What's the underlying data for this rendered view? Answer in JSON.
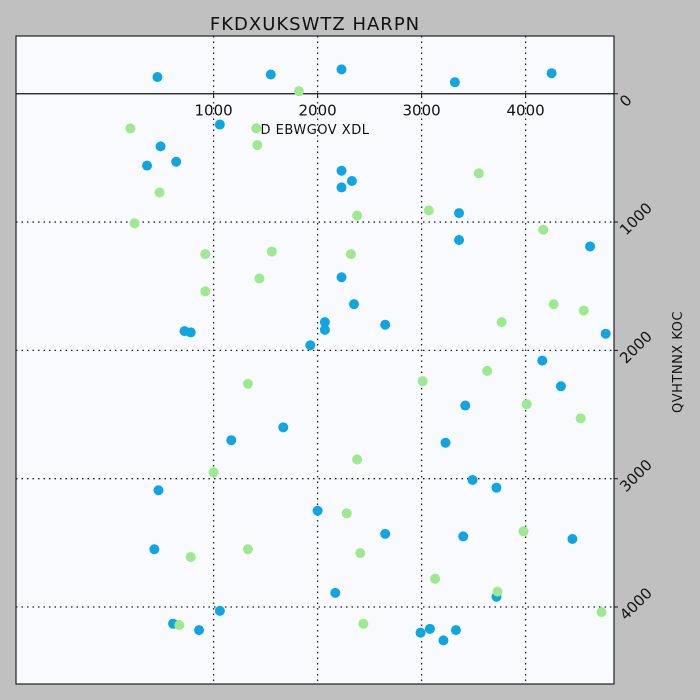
{
  "chart_data": {
    "type": "scatter",
    "title": "FKDXUKSWTZ HARPN",
    "xlabel": "D EBWGOV XDL",
    "ylabel": "QVHTNNX KOC",
    "xlim": [
      -900,
      4850
    ],
    "ylim": [
      -450,
      4600
    ],
    "x_ticks": [
      1000,
      2000,
      3000,
      4000
    ],
    "y_ticks": [
      0,
      1000,
      2000,
      3000,
      4000
    ],
    "x_axis_position": "top",
    "y_axis_position": "right",
    "y_inverted": true,
    "grid": true,
    "colors": {
      "blue": "#0ea5e0",
      "green": "#9ee890",
      "background": "#f8fafe"
    },
    "series": [
      {
        "color": "#0ea5e0",
        "points": [
          [
            460,
            -130
          ],
          [
            1550,
            -150
          ],
          [
            2230,
            -190
          ],
          [
            4250,
            -160
          ],
          [
            3320,
            -90
          ],
          [
            1060,
            240
          ],
          [
            490,
            410
          ],
          [
            360,
            560
          ],
          [
            640,
            530
          ],
          [
            2230,
            600
          ],
          [
            2330,
            680
          ],
          [
            2230,
            730
          ],
          [
            3360,
            930
          ],
          [
            3360,
            1140
          ],
          [
            4620,
            1190
          ],
          [
            2230,
            1430
          ],
          [
            2350,
            1640
          ],
          [
            2650,
            1800
          ],
          [
            2070,
            1780
          ],
          [
            2070,
            1840
          ],
          [
            1930,
            1960
          ],
          [
            720,
            1850
          ],
          [
            780,
            1860
          ],
          [
            4770,
            1870
          ],
          [
            4160,
            2080
          ],
          [
            4340,
            2280
          ],
          [
            3420,
            2430
          ],
          [
            1670,
            2600
          ],
          [
            1170,
            2700
          ],
          [
            3230,
            2720
          ],
          [
            3490,
            3010
          ],
          [
            3720,
            3070
          ],
          [
            470,
            3090
          ],
          [
            2000,
            3250
          ],
          [
            2650,
            3430
          ],
          [
            3400,
            3450
          ],
          [
            4450,
            3470
          ],
          [
            430,
            3550
          ],
          [
            2170,
            3890
          ],
          [
            3720,
            3920
          ],
          [
            1060,
            4030
          ],
          [
            610,
            4130
          ],
          [
            860,
            4180
          ],
          [
            2990,
            4200
          ],
          [
            3080,
            4170
          ],
          [
            3210,
            4260
          ],
          [
            3330,
            4180
          ]
        ]
      },
      {
        "color": "#9ee890",
        "points": [
          [
            1820,
            -20
          ],
          [
            200,
            270
          ],
          [
            1410,
            270
          ],
          [
            1420,
            400
          ],
          [
            3550,
            620
          ],
          [
            480,
            770
          ],
          [
            3070,
            910
          ],
          [
            2380,
            950
          ],
          [
            240,
            1010
          ],
          [
            4170,
            1060
          ],
          [
            920,
            1250
          ],
          [
            1560,
            1230
          ],
          [
            2320,
            1250
          ],
          [
            1440,
            1440
          ],
          [
            920,
            1540
          ],
          [
            4270,
            1640
          ],
          [
            4560,
            1690
          ],
          [
            3770,
            1780
          ],
          [
            3630,
            2160
          ],
          [
            3010,
            2240
          ],
          [
            1330,
            2260
          ],
          [
            4010,
            2420
          ],
          [
            4530,
            2530
          ],
          [
            2380,
            2850
          ],
          [
            1000,
            2950
          ],
          [
            2280,
            3270
          ],
          [
            3980,
            3410
          ],
          [
            1330,
            3550
          ],
          [
            2410,
            3580
          ],
          [
            780,
            3610
          ],
          [
            3130,
            3780
          ],
          [
            3730,
            3880
          ],
          [
            670,
            4140
          ],
          [
            2440,
            4130
          ],
          [
            4730,
            4040
          ]
        ]
      }
    ]
  }
}
